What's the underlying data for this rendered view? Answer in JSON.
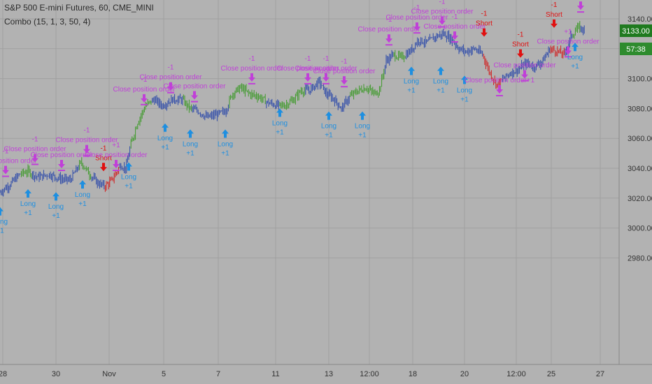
{
  "header": {
    "symbol_title": "S&P 500 E-mini Futures, 60, CME_MINI",
    "indicator_label": "Combo (15, 1, 3, 50, 4)"
  },
  "price_axis": {
    "ticks": [
      "3140.00",
      "3120.00",
      "3100.00",
      "3080.00",
      "3060.00",
      "3040.00",
      "3020.00",
      "3000.00",
      "2980.00"
    ],
    "last_price": "3133.00",
    "countdown": "57:38"
  },
  "chart_data": {
    "type": "line",
    "title": "S&P 500 E-mini Futures, 60, CME_MINI",
    "xlabel": "",
    "ylabel": "",
    "ylim": [
      2968,
      3148
    ],
    "x_ticks": [
      "28",
      "30",
      "Nov",
      "5",
      "7",
      "11",
      "13",
      "12:00",
      "18",
      "20",
      "12:00",
      "25",
      "27"
    ],
    "y_ticks": [
      3140,
      3120,
      3100,
      3080,
      3060,
      3040,
      3020,
      3000,
      2980
    ],
    "grid": true,
    "series": [
      {
        "color_key": "bar colors: blue = neutral, green = uptrend, red = downtrend",
        "knots": [
          [
            0,
            3024
          ],
          [
            14,
            3029
          ],
          [
            28,
            3036
          ],
          [
            40,
            3038
          ],
          [
            54,
            3034
          ],
          [
            70,
            3036
          ],
          [
            86,
            3033
          ],
          [
            100,
            3032
          ],
          [
            116,
            3044
          ],
          [
            128,
            3036
          ],
          [
            140,
            3030
          ],
          [
            150,
            3028
          ],
          [
            160,
            3032
          ],
          [
            172,
            3042
          ],
          [
            180,
            3040
          ],
          [
            186,
            3054
          ],
          [
            196,
            3070
          ],
          [
            208,
            3082
          ],
          [
            220,
            3086
          ],
          [
            232,
            3082
          ],
          [
            246,
            3086
          ],
          [
            260,
            3086
          ],
          [
            272,
            3080
          ],
          [
            284,
            3078
          ],
          [
            296,
            3074
          ],
          [
            310,
            3076
          ],
          [
            322,
            3078
          ],
          [
            332,
            3090
          ],
          [
            344,
            3094
          ],
          [
            356,
            3090
          ],
          [
            370,
            3088
          ],
          [
            382,
            3084
          ],
          [
            396,
            3082
          ],
          [
            406,
            3082
          ],
          [
            420,
            3086
          ],
          [
            430,
            3092
          ],
          [
            442,
            3092
          ],
          [
            456,
            3098
          ],
          [
            466,
            3090
          ],
          [
            478,
            3086
          ],
          [
            488,
            3080
          ],
          [
            500,
            3088
          ],
          [
            512,
            3092
          ],
          [
            524,
            3094
          ],
          [
            534,
            3090
          ],
          [
            542,
            3092
          ],
          [
            552,
            3112
          ],
          [
            562,
            3116
          ],
          [
            574,
            3114
          ],
          [
            586,
            3118
          ],
          [
            598,
            3126
          ],
          [
            610,
            3124
          ],
          [
            622,
            3128
          ],
          [
            634,
            3130
          ],
          [
            646,
            3126
          ],
          [
            656,
            3120
          ],
          [
            666,
            3118
          ],
          [
            678,
            3120
          ],
          [
            690,
            3116
          ],
          [
            700,
            3104
          ],
          [
            710,
            3096
          ],
          [
            720,
            3100
          ],
          [
            730,
            3104
          ],
          [
            740,
            3106
          ],
          [
            752,
            3110
          ],
          [
            764,
            3108
          ],
          [
            776,
            3112
          ],
          [
            786,
            3120
          ],
          [
            798,
            3118
          ],
          [
            806,
            3116
          ],
          [
            816,
            3128
          ],
          [
            826,
            3134
          ],
          [
            836,
            3133
          ]
        ],
        "segment_colors": [
          {
            "from": 0,
            "to": 30,
            "color": "#2c49a9"
          },
          {
            "from": 30,
            "to": 46,
            "color": "#3e9a2a"
          },
          {
            "from": 46,
            "to": 112,
            "color": "#2c49a9"
          },
          {
            "from": 112,
            "to": 130,
            "color": "#3e9a2a"
          },
          {
            "from": 130,
            "to": 150,
            "color": "#2c49a9"
          },
          {
            "from": 150,
            "to": 170,
            "color": "#d12020"
          },
          {
            "from": 170,
            "to": 186,
            "color": "#2c49a9"
          },
          {
            "from": 186,
            "to": 216,
            "color": "#3e9a2a"
          },
          {
            "from": 216,
            "to": 262,
            "color": "#2c49a9"
          },
          {
            "from": 262,
            "to": 274,
            "color": "#3e9a2a"
          },
          {
            "from": 274,
            "to": 328,
            "color": "#2c49a9"
          },
          {
            "from": 328,
            "to": 380,
            "color": "#3e9a2a"
          },
          {
            "from": 380,
            "to": 400,
            "color": "#2c49a9"
          },
          {
            "from": 400,
            "to": 436,
            "color": "#3e9a2a"
          },
          {
            "from": 436,
            "to": 500,
            "color": "#2c49a9"
          },
          {
            "from": 500,
            "to": 550,
            "color": "#3e9a2a"
          },
          {
            "from": 550,
            "to": 562,
            "color": "#2c49a9"
          },
          {
            "from": 562,
            "to": 580,
            "color": "#3e9a2a"
          },
          {
            "from": 580,
            "to": 690,
            "color": "#2c49a9"
          },
          {
            "from": 690,
            "to": 718,
            "color": "#d12020"
          },
          {
            "from": 718,
            "to": 786,
            "color": "#2c49a9"
          },
          {
            "from": 786,
            "to": 808,
            "color": "#d12020"
          },
          {
            "from": 808,
            "to": 818,
            "color": "#2c49a9"
          },
          {
            "from": 818,
            "to": 830,
            "color": "#3e9a2a"
          },
          {
            "from": 830,
            "to": 840,
            "color": "#2c49a9"
          }
        ]
      }
    ]
  },
  "signals": [
    {
      "kind": "close",
      "xy": [
        8,
        3036
      ],
      "labels": [
        "Close position order",
        "-1"
      ]
    },
    {
      "kind": "long",
      "xy": [
        0,
        3014
      ],
      "labels": [
        "Long",
        "+1"
      ]
    },
    {
      "kind": "close",
      "xy": [
        50,
        3044
      ],
      "labels": [
        "Close position order",
        "-1"
      ]
    },
    {
      "kind": "long",
      "xy": [
        40,
        3026
      ],
      "labels": [
        "Long",
        "+1"
      ]
    },
    {
      "kind": "close",
      "xy": [
        88,
        3040
      ],
      "labels": [
        "Close position order"
      ]
    },
    {
      "kind": "long",
      "xy": [
        80,
        3024
      ],
      "labels": [
        "Long",
        "+1"
      ]
    },
    {
      "kind": "close",
      "xy": [
        124,
        3050
      ],
      "labels": [
        "Close position order",
        "-1"
      ]
    },
    {
      "kind": "long",
      "xy": [
        118,
        3032
      ],
      "labels": [
        "Long",
        "+1"
      ]
    },
    {
      "kind": "short",
      "xy": [
        148,
        3038
      ],
      "labels": [
        "Short",
        "-1"
      ]
    },
    {
      "kind": "close",
      "xy": [
        166,
        3040
      ],
      "labels": [
        "Close position order",
        "+1"
      ]
    },
    {
      "kind": "long",
      "xy": [
        184,
        3044
      ],
      "labels": [
        "Long",
        "+1"
      ]
    },
    {
      "kind": "close",
      "xy": [
        206,
        3084
      ],
      "labels": [
        "Close position order",
        "-1"
      ]
    },
    {
      "kind": "close",
      "xy": [
        244,
        3092
      ],
      "labels": [
        "Close position order",
        "-1"
      ]
    },
    {
      "kind": "close",
      "xy": [
        278,
        3086
      ],
      "labels": [
        "Close position order"
      ]
    },
    {
      "kind": "long",
      "xy": [
        236,
        3070
      ],
      "labels": [
        "Long",
        "+1"
      ]
    },
    {
      "kind": "long",
      "xy": [
        272,
        3066
      ],
      "labels": [
        "Long",
        "+1"
      ]
    },
    {
      "kind": "long",
      "xy": [
        322,
        3066
      ],
      "labels": [
        "Long",
        "+1"
      ]
    },
    {
      "kind": "close",
      "xy": [
        360,
        3098
      ],
      "labels": [
        "Close position order",
        "-1"
      ]
    },
    {
      "kind": "long",
      "xy": [
        400,
        3080
      ],
      "labels": [
        "Long",
        "+1"
      ]
    },
    {
      "kind": "close",
      "xy": [
        440,
        3098
      ],
      "labels": [
        "Close position order",
        "-1"
      ]
    },
    {
      "kind": "close",
      "xy": [
        466,
        3098
      ],
      "labels": [
        "Close position order",
        "-1"
      ]
    },
    {
      "kind": "close",
      "xy": [
        492,
        3096
      ],
      "labels": [
        "Close position order",
        "-1"
      ]
    },
    {
      "kind": "long",
      "xy": [
        470,
        3078
      ],
      "labels": [
        "Long",
        "+1"
      ]
    },
    {
      "kind": "long",
      "xy": [
        518,
        3078
      ],
      "labels": [
        "Long",
        "+1"
      ]
    },
    {
      "kind": "close",
      "xy": [
        556,
        3124
      ],
      "labels": [
        "Close position order",
        "-1"
      ]
    },
    {
      "kind": "close",
      "xy": [
        596,
        3132
      ],
      "labels": [
        "Close position order",
        "-1"
      ]
    },
    {
      "kind": "close",
      "xy": [
        632,
        3136
      ],
      "labels": [
        "Close position order",
        "-1"
      ]
    },
    {
      "kind": "close",
      "xy": [
        650,
        3126
      ],
      "labels": [
        "Close position order",
        "-1"
      ]
    },
    {
      "kind": "long",
      "xy": [
        588,
        3108
      ],
      "labels": [
        "Long",
        "+1"
      ]
    },
    {
      "kind": "long",
      "xy": [
        630,
        3108
      ],
      "labels": [
        "Long",
        "+1"
      ]
    },
    {
      "kind": "long",
      "xy": [
        664,
        3102
      ],
      "labels": [
        "Long",
        "+1"
      ]
    },
    {
      "kind": "short",
      "xy": [
        692,
        3128
      ],
      "labels": [
        "Short",
        "-1"
      ]
    },
    {
      "kind": "close",
      "xy": [
        714,
        3090
      ],
      "labels": [
        "Close position order+1"
      ]
    },
    {
      "kind": "short",
      "xy": [
        744,
        3114
      ],
      "labels": [
        "Short",
        "-1"
      ]
    },
    {
      "kind": "close",
      "xy": [
        750,
        3100
      ],
      "labels": [
        "Close position order"
      ]
    },
    {
      "kind": "short",
      "xy": [
        792,
        3134
      ],
      "labels": [
        "Short",
        "-1"
      ]
    },
    {
      "kind": "close",
      "xy": [
        812,
        3116
      ],
      "labels": [
        "Close position order",
        "+1"
      ]
    },
    {
      "kind": "long",
      "xy": [
        822,
        3124
      ],
      "labels": [
        "Long",
        "+1"
      ]
    },
    {
      "kind": "close",
      "xy": [
        830,
        3146
      ],
      "labels": [
        "Close position order"
      ]
    }
  ],
  "colors": {
    "background": "#b2b2b2",
    "grid": "#a0a0a0",
    "long": "#1e8fe0",
    "short": "#e01010",
    "close": "#c040d8",
    "last_price_bg": "#1f7a1f",
    "countdown_bg": "#2e8b2e"
  }
}
